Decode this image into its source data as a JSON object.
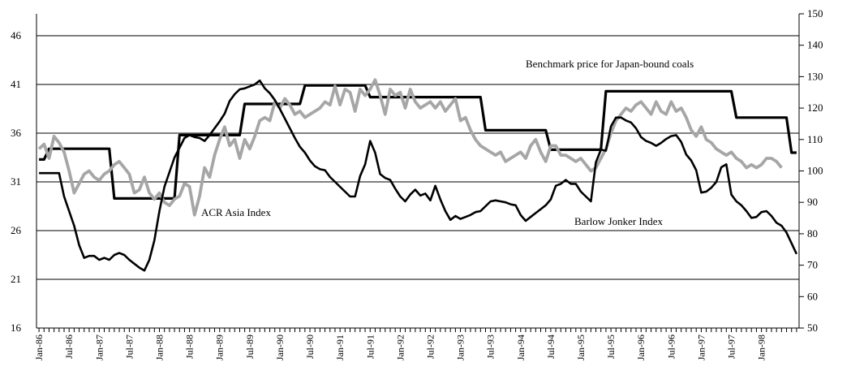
{
  "chart_data": {
    "type": "line",
    "annotations": [
      "Benchmark price for Japan-bound coals",
      "ACR Asia Index",
      "Barlow Jonker Index"
    ],
    "categories": [
      "Jan-86",
      null,
      null,
      null,
      null,
      null,
      "Jul-86",
      null,
      null,
      null,
      null,
      null,
      "Jan-87",
      null,
      null,
      null,
      null,
      null,
      "Jul-87",
      null,
      null,
      null,
      null,
      null,
      "Jan-88",
      null,
      null,
      null,
      null,
      null,
      "Jul-88",
      null,
      null,
      null,
      null,
      null,
      "Jan-89",
      null,
      null,
      null,
      null,
      null,
      "Jul-89",
      null,
      null,
      null,
      null,
      null,
      "Jan-90",
      null,
      null,
      null,
      null,
      null,
      "Jul-90",
      null,
      null,
      null,
      null,
      null,
      "Jan-91",
      null,
      null,
      null,
      null,
      null,
      "Jul-91",
      null,
      null,
      null,
      null,
      null,
      "Jan-92",
      null,
      null,
      null,
      null,
      null,
      "Jul-92",
      null,
      null,
      null,
      null,
      null,
      "Jan-93",
      null,
      null,
      null,
      null,
      null,
      "Jul-93",
      null,
      null,
      null,
      null,
      null,
      "Jan-94",
      null,
      null,
      null,
      null,
      null,
      "Jul-94",
      null,
      null,
      null,
      null,
      null,
      "Jan-95",
      null,
      null,
      null,
      null,
      null,
      "Jul-95",
      null,
      null,
      null,
      null,
      null,
      "Jan-96",
      null,
      null,
      null,
      null,
      null,
      "Jul-96",
      null,
      null,
      null,
      null,
      null,
      "Jan-97",
      null,
      null,
      null,
      null,
      null,
      "Jul-97",
      null,
      null,
      null,
      null,
      null,
      "Jan-98",
      null,
      null,
      null,
      null,
      null,
      null,
      null
    ],
    "ylim": [
      16,
      48.25
    ],
    "yticks": [
      16,
      21,
      26,
      31,
      36,
      41,
      46
    ],
    "y2lim": [
      50,
      150
    ],
    "y2ticks": [
      50,
      60,
      70,
      80,
      90,
      100,
      110,
      120,
      130,
      140,
      150
    ],
    "grid": true,
    "series": [
      {
        "name": "Benchmark price for Japan-bound coals",
        "color": "#000000",
        "width": 3.2,
        "values": [
          33.3,
          33.3,
          34.4,
          34.4,
          34.4,
          34.4,
          34.4,
          34.4,
          34.4,
          34.4,
          34.4,
          34.4,
          34.4,
          34.4,
          34.4,
          29.3,
          29.3,
          29.3,
          29.3,
          29.3,
          29.3,
          29.3,
          29.3,
          29.3,
          29.3,
          29.3,
          29.3,
          29.3,
          35.8,
          35.8,
          35.8,
          35.8,
          35.8,
          35.8,
          35.8,
          35.8,
          35.8,
          35.8,
          35.8,
          35.8,
          35.8,
          39,
          39,
          39,
          39,
          39,
          39,
          39,
          39,
          39,
          39,
          39,
          39,
          40.9,
          40.9,
          40.9,
          40.9,
          40.9,
          40.9,
          40.9,
          40.9,
          40.9,
          40.9,
          40.9,
          40.9,
          40.9,
          39.7,
          39.7,
          39.7,
          39.7,
          39.7,
          39.7,
          39.7,
          39.7,
          39.7,
          39.7,
          39.7,
          39.7,
          39.7,
          39.7,
          39.7,
          39.7,
          39.7,
          39.7,
          39.7,
          39.7,
          39.7,
          39.7,
          39.7,
          36.3,
          36.3,
          36.3,
          36.3,
          36.3,
          36.3,
          36.3,
          36.3,
          36.3,
          36.3,
          36.3,
          36.3,
          36.3,
          34.3,
          34.3,
          34.3,
          34.3,
          34.3,
          34.3,
          34.3,
          34.3,
          34.3,
          34.3,
          34.3,
          40.3,
          40.3,
          40.3,
          40.3,
          40.3,
          40.3,
          40.3,
          40.3,
          40.3,
          40.3,
          40.3,
          40.3,
          40.3,
          40.3,
          40.3,
          40.3,
          40.3,
          40.3,
          40.3,
          40.3,
          40.3,
          40.3,
          40.3,
          40.3,
          40.3,
          40.3,
          37.6,
          37.6,
          37.6,
          37.6,
          37.6,
          37.6,
          37.6,
          37.6,
          37.6,
          37.6,
          37.6,
          34,
          34
        ]
      },
      {
        "name": "ACR Asia Index",
        "color": "#a6a6a6",
        "width": 3.8,
        "axis": "y2",
        "values": [
          107,
          108.5,
          104,
          111,
          109,
          106,
          100,
          93,
          96,
          99,
          100,
          98,
          97,
          99,
          100,
          102,
          103,
          101,
          99,
          93,
          94,
          98,
          93,
          91,
          93,
          90,
          89,
          91,
          92,
          96,
          95,
          86,
          92,
          101,
          98,
          105,
          110,
          114,
          108,
          110,
          104,
          110,
          107,
          111,
          116,
          117,
          116,
          122,
          120,
          123,
          121,
          118,
          119,
          117,
          118,
          119,
          120,
          122,
          121,
          127,
          121,
          126,
          125,
          119,
          126,
          124,
          126,
          129,
          124,
          118,
          126,
          124,
          125,
          120,
          126,
          122,
          120,
          121,
          122,
          120,
          122,
          119,
          121,
          123,
          116,
          117,
          113,
          110,
          108,
          107,
          106,
          105,
          106,
          103,
          104,
          105,
          106,
          104,
          108,
          110,
          106,
          103,
          108,
          108,
          105,
          105,
          104,
          103,
          104,
          102,
          100,
          101,
          104,
          107,
          112,
          116,
          118,
          120,
          119,
          121,
          122,
          120,
          118,
          122,
          119,
          118,
          122,
          119,
          120,
          117,
          113,
          111,
          114,
          110,
          109,
          107,
          106,
          105,
          106,
          104,
          103,
          101,
          102,
          101,
          102,
          104,
          104,
          103,
          101,
          null,
          null,
          null
        ]
      },
      {
        "name": "Barlow Jonker Index",
        "color": "#000000",
        "width": 2.6,
        "values": [
          31.9,
          31.9,
          31.9,
          31.9,
          31.9,
          29.5,
          28,
          26.5,
          24.5,
          23.2,
          23.4,
          23.4,
          23,
          23.2,
          23,
          23.5,
          23.7,
          23.5,
          23,
          22.6,
          22.2,
          21.9,
          23,
          25,
          28,
          30.5,
          32,
          33.5,
          34.5,
          35.5,
          35.8,
          35.6,
          35.5,
          35.2,
          35.8,
          36.5,
          37.2,
          38,
          39.3,
          40,
          40.5,
          40.6,
          40.8,
          41,
          41.4,
          40.6,
          40.1,
          39.4,
          38.5,
          37.5,
          36.5,
          35.5,
          34.6,
          34,
          33.2,
          32.6,
          32.3,
          32.2,
          31.5,
          31,
          30.5,
          30,
          29.5,
          29.5,
          31.6,
          32.8,
          35.2,
          34,
          31.8,
          31.4,
          31.2,
          30.3,
          29.5,
          29,
          29.7,
          30.2,
          29.6,
          29.8,
          29.1,
          30.6,
          29.2,
          28,
          27.1,
          27.5,
          27.2,
          27.4,
          27.6,
          27.9,
          28,
          28.5,
          29,
          29.1,
          29,
          28.9,
          28.7,
          28.6,
          27.6,
          27,
          27.4,
          27.8,
          28.2,
          28.6,
          29.2,
          30.6,
          30.8,
          31.2,
          30.8,
          30.8,
          30,
          29.5,
          29,
          33,
          34.3,
          34.2,
          36.7,
          37.6,
          37.6,
          37.3,
          37.1,
          36.5,
          35.6,
          35.2,
          35,
          34.7,
          35,
          35.4,
          35.7,
          35.8,
          35.1,
          33.8,
          33.2,
          32.2,
          29.9,
          30,
          30.4,
          31,
          32.5,
          32.8,
          29.7,
          29,
          28.6,
          28,
          27.3,
          27.4,
          27.9,
          28,
          27.5,
          26.8,
          26.5,
          25.8,
          24.7,
          23.6
        ]
      }
    ]
  }
}
